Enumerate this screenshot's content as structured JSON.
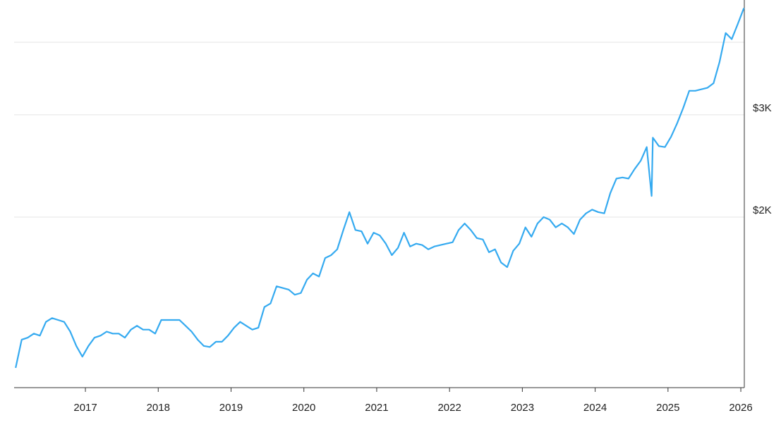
{
  "chart_data": {
    "type": "line",
    "log_scale_y": true,
    "grid": true,
    "xlim": [
      2016.021,
      2026.048
    ],
    "ylim": [
      1017,
      4730
    ],
    "xticks": [
      2017,
      2018,
      2019,
      2020,
      2021,
      2022,
      2023,
      2024,
      2025,
      2026
    ],
    "yticks": [
      {
        "value": 2000,
        "label": "$2K"
      },
      {
        "value": 3000,
        "label": "$3K"
      }
    ],
    "extra_gridlines": [
      4000
    ],
    "series": [
      {
        "color": "#35aaf0",
        "x": [
          2016.042,
          2016.125,
          2016.208,
          2016.292,
          2016.375,
          2016.458,
          2016.542,
          2016.625,
          2016.708,
          2016.792,
          2016.875,
          2016.958,
          2017.042,
          2017.125,
          2017.208,
          2017.292,
          2017.375,
          2017.458,
          2017.542,
          2017.625,
          2017.708,
          2017.792,
          2017.875,
          2017.958,
          2018.042,
          2018.125,
          2018.208,
          2018.292,
          2018.375,
          2018.458,
          2018.542,
          2018.625,
          2018.708,
          2018.792,
          2018.875,
          2018.958,
          2019.042,
          2019.125,
          2019.208,
          2019.292,
          2019.375,
          2019.458,
          2019.542,
          2019.625,
          2019.708,
          2019.792,
          2019.875,
          2019.958,
          2020.042,
          2020.125,
          2020.208,
          2020.292,
          2020.375,
          2020.458,
          2020.542,
          2020.625,
          2020.708,
          2020.792,
          2020.875,
          2020.958,
          2021.042,
          2021.125,
          2021.208,
          2021.292,
          2021.375,
          2021.458,
          2021.542,
          2021.625,
          2021.708,
          2021.792,
          2021.875,
          2021.958,
          2022.042,
          2022.125,
          2022.208,
          2022.292,
          2022.375,
          2022.458,
          2022.542,
          2022.625,
          2022.708,
          2022.792,
          2022.875,
          2022.958,
          2023.042,
          2023.125,
          2023.208,
          2023.292,
          2023.375,
          2023.458,
          2023.542,
          2023.625,
          2023.708,
          2023.792,
          2023.875,
          2023.958,
          2024.042,
          2024.125,
          2024.208,
          2024.292,
          2024.375,
          2024.458,
          2024.542,
          2024.625,
          2024.708,
          2024.775,
          2024.792,
          2024.875,
          2024.958,
          2025.042,
          2025.125,
          2025.208,
          2025.292,
          2025.375,
          2025.458,
          2025.542,
          2025.625,
          2025.708,
          2025.792,
          2025.875,
          2025.958,
          2026.042
        ],
        "values": [
          1100,
          1230,
          1240,
          1260,
          1250,
          1320,
          1340,
          1330,
          1320,
          1270,
          1200,
          1150,
          1200,
          1240,
          1250,
          1270,
          1260,
          1260,
          1240,
          1280,
          1300,
          1280,
          1280,
          1260,
          1330,
          1330,
          1330,
          1330,
          1300,
          1270,
          1230,
          1200,
          1195,
          1220,
          1220,
          1250,
          1290,
          1320,
          1300,
          1280,
          1290,
          1400,
          1420,
          1520,
          1510,
          1500,
          1470,
          1480,
          1560,
          1600,
          1580,
          1700,
          1720,
          1760,
          1900,
          2040,
          1900,
          1890,
          1800,
          1880,
          1860,
          1800,
          1720,
          1770,
          1880,
          1780,
          1800,
          1790,
          1760,
          1780,
          1790,
          1800,
          1810,
          1900,
          1950,
          1900,
          1840,
          1830,
          1740,
          1760,
          1670,
          1640,
          1750,
          1800,
          1920,
          1850,
          1950,
          2000,
          1980,
          1920,
          1950,
          1920,
          1870,
          1980,
          2030,
          2060,
          2040,
          2030,
          2200,
          2330,
          2340,
          2330,
          2420,
          2500,
          2640,
          2175,
          2740,
          2650,
          2640,
          2750,
          2900,
          3080,
          3300,
          3300,
          3320,
          3340,
          3400,
          3700,
          4150,
          4050,
          4300,
          4580
        ]
      }
    ]
  }
}
